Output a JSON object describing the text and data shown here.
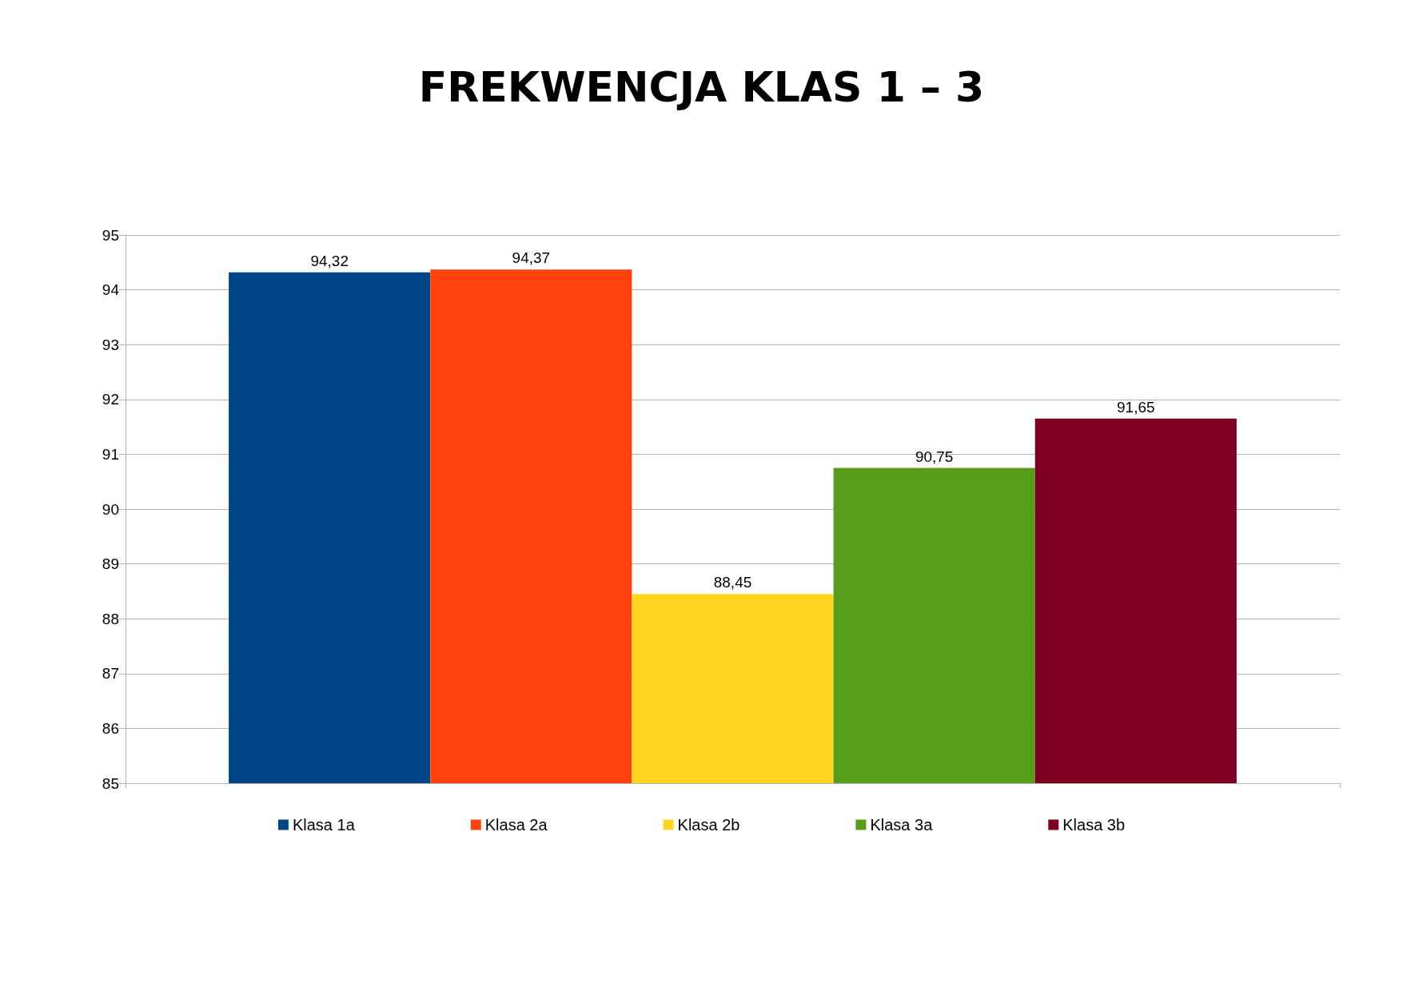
{
  "chart_data": {
    "type": "bar",
    "title": "FREKWENCJA KLAS 1 – 3",
    "categories": [
      null
    ],
    "series": [
      {
        "name": "Klasa 1a",
        "color": "#004586",
        "values": [
          94.32
        ],
        "value_labels": [
          "94,32"
        ]
      },
      {
        "name": "Klasa 2a",
        "color": "#ff420e",
        "values": [
          94.37
        ],
        "value_labels": [
          "94,37"
        ]
      },
      {
        "name": "Klasa 2b",
        "color": "#ffd320",
        "values": [
          88.45
        ],
        "value_labels": [
          "88,45"
        ]
      },
      {
        "name": "Klasa 3a",
        "color": "#579d1c",
        "values": [
          90.75
        ],
        "value_labels": [
          "90,75"
        ]
      },
      {
        "name": "Klasa 3b",
        "color": "#7e0021",
        "values": [
          91.65
        ],
        "value_labels": [
          "91,65"
        ]
      }
    ],
    "ylim": [
      85,
      95
    ],
    "yticks": [
      85,
      86,
      87,
      88,
      89,
      90,
      91,
      92,
      93,
      94,
      95
    ],
    "grid": "y",
    "legend": "bottom"
  }
}
